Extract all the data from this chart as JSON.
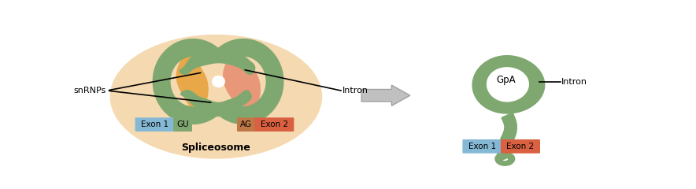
{
  "bg_color": "#ffffff",
  "ellipse_color": "#f5d9b0",
  "green_color": "#7fa870",
  "orange_color": "#e8876a",
  "salmon_color": "#e89878",
  "gold_color": "#e8a84a",
  "exon1_color": "#85b8d5",
  "exon2_color": "#d96040",
  "gu_color": "#7fa870",
  "ag_color": "#c07848",
  "arrow_color": "#c0c0c0",
  "arrow_edge_color": "#a0a0a0",
  "title_left": "Spliceosome",
  "label_snrnps": "snRNPs",
  "label_intron_left": "Intron",
  "label_intron_right": "Intron",
  "label_gpa": "GpA",
  "label_exon1": "Exon 1",
  "label_exon2": "Exon 2",
  "label_gu": "GU",
  "label_ag": "AG"
}
